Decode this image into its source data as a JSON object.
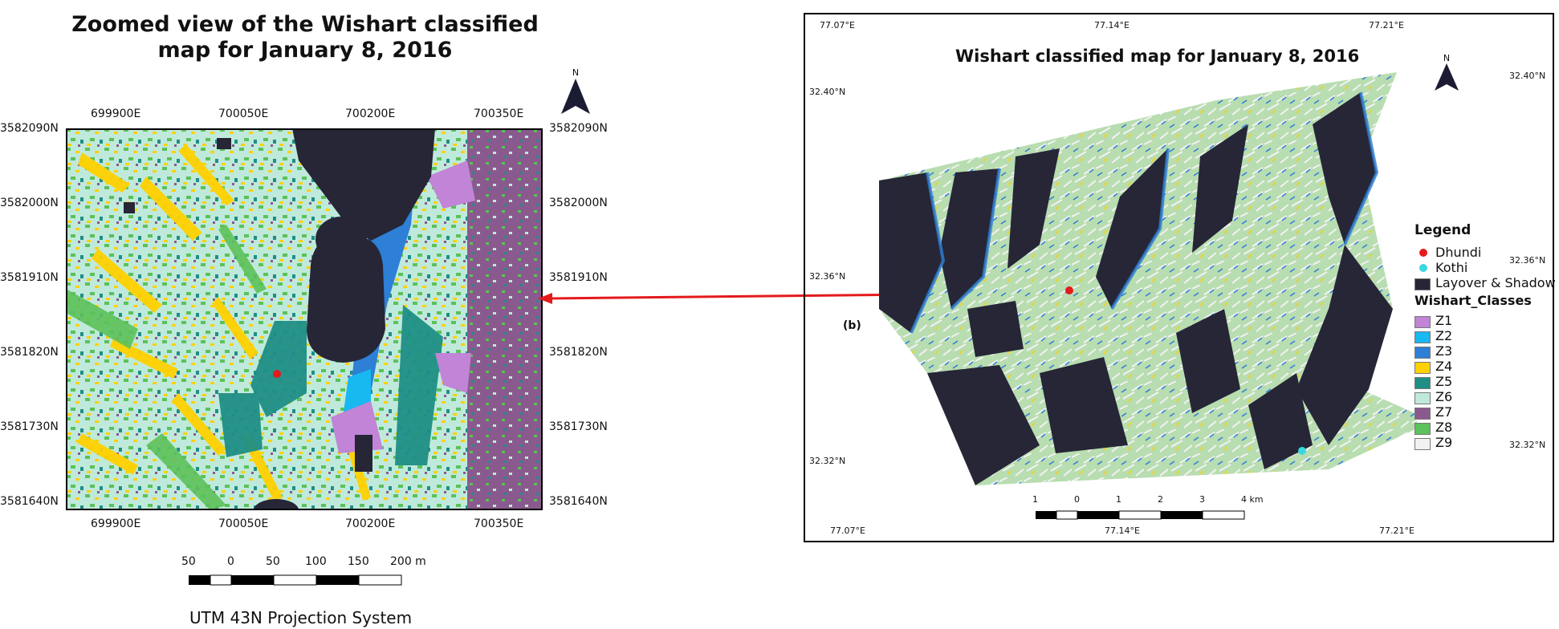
{
  "left_map": {
    "title_line1": "Zoomed view of the Wishart classified",
    "title_line2": "map for January 8, 2016",
    "north_label": "N",
    "x_ticks": [
      "699900E",
      "700050E",
      "700200E",
      "700350E"
    ],
    "y_ticks": [
      "3582090N",
      "3582000N",
      "3581910N",
      "3581820N",
      "3581730N",
      "3581640N"
    ],
    "scale_labels": [
      "50",
      "0",
      "50",
      "100",
      "150",
      "200 m"
    ],
    "projection": "UTM 43N Projection System"
  },
  "right_map": {
    "title": "Wishart classified map for January 8, 2016",
    "north_label": "N",
    "panel_label": "(b)",
    "x_ticks": [
      "77.07°E",
      "77.14°E",
      "77.21°E"
    ],
    "y_ticks_left": [
      "32.40°N",
      "32.36°N",
      "32.32°N"
    ],
    "y_ticks_right": [
      "32.40°N",
      "32.36°N",
      "32.32°N"
    ],
    "scale_labels": [
      "1",
      "0",
      "1",
      "2",
      "3",
      "4 km"
    ],
    "legend": {
      "title": "Legend",
      "points": [
        {
          "label": "Dhundi",
          "color": "#e41a1c"
        },
        {
          "label": "Kothi",
          "color": "#3ad7e0"
        }
      ],
      "layover": {
        "label": "Layover & Shadow",
        "color": "#262637"
      },
      "classes_title": "Wishart_Classes",
      "classes": [
        {
          "label": "Z1",
          "color": "#c184d6"
        },
        {
          "label": "Z2",
          "color": "#18b8f0"
        },
        {
          "label": "Z3",
          "color": "#2e7fd6"
        },
        {
          "label": "Z4",
          "color": "#ffd100"
        },
        {
          "label": "Z5",
          "color": "#1f8f86"
        },
        {
          "label": "Z6",
          "color": "#bfeadb"
        },
        {
          "label": "Z7",
          "color": "#8a5a8e"
        },
        {
          "label": "Z8",
          "color": "#5cc15a"
        },
        {
          "label": "Z9",
          "color": "#f2f2f2"
        }
      ]
    }
  }
}
